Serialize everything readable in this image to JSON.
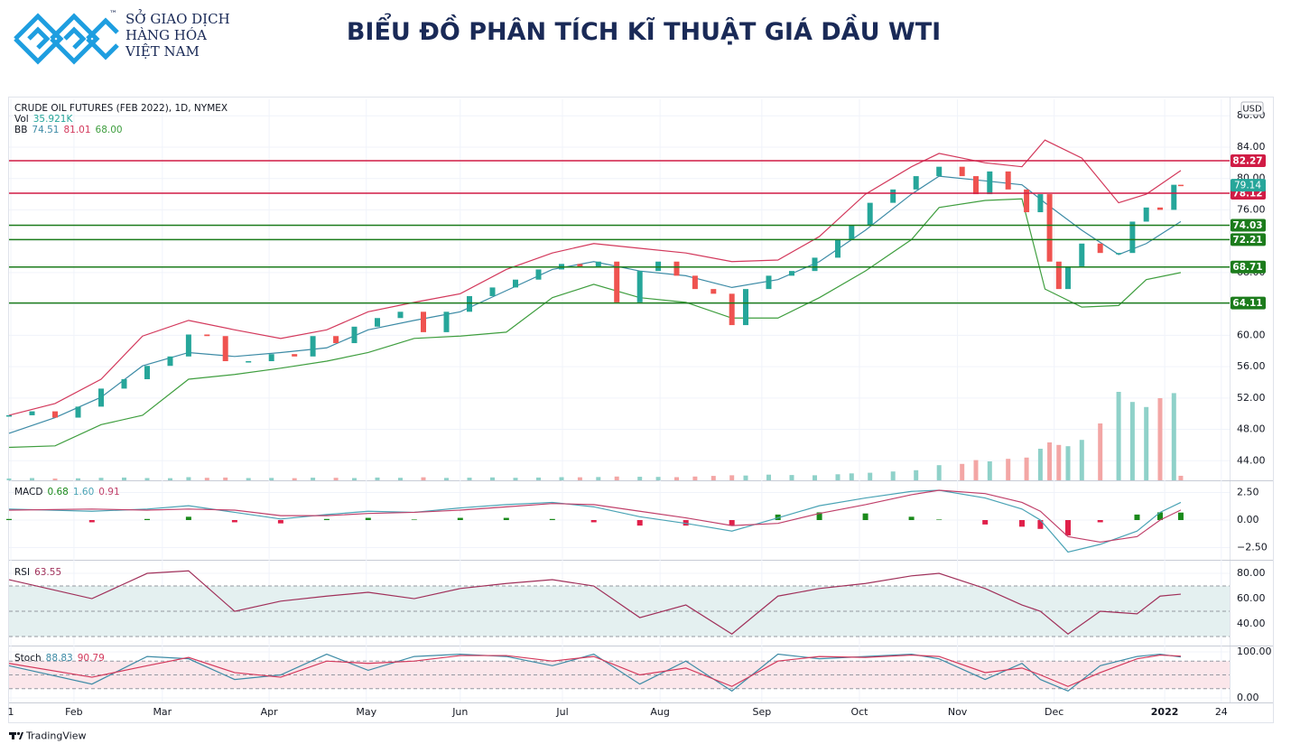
{
  "header": {
    "logo_lines": [
      "SỞ GIAO DỊCH",
      "HÀNG HÓA",
      "VIỆT NAM"
    ],
    "trademark": "™",
    "title": "BIỂU ĐỒ PHÂN TÍCH KĨ THUẬT GIÁ DẦU WTI"
  },
  "chart_data": [
    {
      "type": "candlestick",
      "title": "CRUDE OIL FUTURES (FEB 2022), 1D, NYMEX",
      "currency": "USD",
      "up_color": "#26a69a",
      "down_color": "#ef5350",
      "xlim": [
        0,
        265.1
      ],
      "xticks": [
        {
          "value": 0.4,
          "label": "1"
        },
        {
          "value": 14.1,
          "label": "Feb"
        },
        {
          "value": 33.3,
          "label": "Mar"
        },
        {
          "value": 56.5,
          "label": "Apr"
        },
        {
          "value": 77.6,
          "label": "May"
        },
        {
          "value": 98,
          "label": "Jun"
        },
        {
          "value": 120.2,
          "label": "Jul"
        },
        {
          "value": 141.4,
          "label": "Aug"
        },
        {
          "value": 163.5,
          "label": "Sep"
        },
        {
          "value": 184.7,
          "label": "Oct"
        },
        {
          "value": 206,
          "label": "Nov"
        },
        {
          "value": 227,
          "label": "Dec"
        },
        {
          "value": 251,
          "label": "2022"
        },
        {
          "value": 263.3,
          "label": "24"
        }
      ],
      "ylim": [
        41.5,
        90.1
      ],
      "yticks": [
        {
          "value": 44,
          "label": "44.00"
        },
        {
          "value": 48,
          "label": "48.00"
        },
        {
          "value": 52,
          "label": "52.00"
        },
        {
          "value": 56,
          "label": "56.00"
        },
        {
          "value": 60,
          "label": "60.00"
        },
        {
          "value": 64,
          "label": "64.00"
        },
        {
          "value": 68,
          "label": "68.00"
        },
        {
          "value": 72,
          "label": "72.00"
        },
        {
          "value": 76,
          "label": "76.00"
        },
        {
          "value": 80,
          "label": "80.00"
        },
        {
          "value": 84,
          "label": "84.00"
        },
        {
          "value": 88,
          "label": "88.00"
        }
      ],
      "x": [
        0,
        5,
        10,
        15,
        20,
        25,
        30,
        35,
        39,
        43,
        47,
        52,
        57,
        62,
        66,
        71,
        75,
        80,
        85,
        90,
        95,
        100,
        105,
        110,
        115,
        120,
        124,
        128,
        132,
        137,
        141,
        145,
        149,
        153,
        157,
        160,
        165,
        170,
        175,
        180,
        183,
        187,
        192,
        197,
        202,
        207,
        210,
        213,
        217,
        221,
        224,
        226,
        228,
        230,
        233,
        237,
        241,
        244,
        247,
        250,
        253,
        254.5
      ],
      "values": [
        49.8,
        50.3,
        49.5,
        50.9,
        53.2,
        54.4,
        56.1,
        57.3,
        60.1,
        59.9,
        56.7,
        56.7,
        57.6,
        57.3,
        59.9,
        59.0,
        61.1,
        62.2,
        63.0,
        60.4,
        63.0,
        65.0,
        66.1,
        67.1,
        68.4,
        69.1,
        68.7,
        69.4,
        64.2,
        68.2,
        69.4,
        67.6,
        65.9,
        65.3,
        61.3,
        65.9,
        67.6,
        68.2,
        69.9,
        72.2,
        74.0,
        76.9,
        78.6,
        80.3,
        81.5,
        80.3,
        78.0,
        80.9,
        78.6,
        75.7,
        78.0,
        69.4,
        65.9,
        68.8,
        71.7,
        70.5,
        70.5,
        74.5,
        76.3,
        76.0,
        79.2,
        79.1
      ],
      "volume": {
        "name": "Vol",
        "label": "35.921K",
        "up_color": "#8fd1c9",
        "down_color": "#f3a6a5",
        "values": [
          15,
          18,
          14,
          16,
          20,
          22,
          18,
          17,
          25,
          20,
          22,
          18,
          19,
          17,
          21,
          20,
          18,
          22,
          20,
          24,
          19,
          21,
          23,
          20,
          22,
          25,
          24,
          26,
          30,
          28,
          27,
          25,
          30,
          35,
          40,
          38,
          45,
          42,
          40,
          48,
          55,
          60,
          70,
          80,
          120,
          130,
          160,
          150,
          170,
          180,
          250,
          300,
          280,
          270,
          320,
          450,
          700,
          620,
          580,
          650,
          690,
          35.921
        ]
      },
      "bollinger": {
        "name": "BB",
        "labels": [
          "74.51",
          "81.01",
          "68.00"
        ],
        "middle_color": "#3d8ba6",
        "upper_color": "#d3395c",
        "lower_color": "#3f9e3f",
        "x": [
          0,
          10,
          20,
          29,
          39,
          49,
          59,
          69,
          78,
          88,
          98,
          108,
          118,
          127,
          137,
          147,
          157,
          167,
          176,
          186,
          196,
          202,
          212,
          220,
          225,
          233,
          241,
          247,
          254.5
        ],
        "upper": [
          49.8,
          51.3,
          54.4,
          59.9,
          61.9,
          60.7,
          59.6,
          60.7,
          63.0,
          64.2,
          65.3,
          68.4,
          70.5,
          71.7,
          71.1,
          70.5,
          69.4,
          69.6,
          72.6,
          78.0,
          81.5,
          83.2,
          82.0,
          81.5,
          84.9,
          82.6,
          76.9,
          78.0,
          81.01
        ],
        "middle": [
          47.5,
          49.5,
          52.1,
          56.1,
          57.8,
          57.3,
          57.8,
          58.4,
          60.7,
          61.9,
          63.0,
          65.7,
          68.4,
          69.4,
          68.2,
          67.6,
          66.1,
          67.1,
          69.4,
          73.4,
          78.0,
          80.3,
          79.7,
          79.2,
          76.9,
          73.4,
          70.3,
          71.7,
          74.51
        ],
        "lower": [
          45.7,
          45.9,
          48.6,
          49.8,
          54.4,
          55.0,
          55.8,
          56.7,
          57.8,
          59.6,
          59.9,
          60.4,
          64.8,
          66.5,
          64.8,
          64.2,
          62.2,
          62.2,
          64.8,
          68.2,
          72.2,
          76.3,
          77.2,
          77.4,
          65.9,
          63.6,
          63.8,
          67.1,
          68.0
        ]
      },
      "levels": [
        {
          "value": 82.27,
          "label": "82.27",
          "color": "#d01c45"
        },
        {
          "value": 78.12,
          "label": "78.12",
          "color": "#d01c45"
        },
        {
          "value": 74.03,
          "label": "74.03",
          "color": "#1c7c1c"
        },
        {
          "value": 72.21,
          "label": "72.21",
          "color": "#1c7c1c"
        },
        {
          "value": 68.71,
          "label": "68.71",
          "color": "#1c7c1c"
        },
        {
          "value": 64.11,
          "label": "64.11",
          "color": "#1c7c1c"
        }
      ],
      "last_price": {
        "value": 79.14,
        "label": "79.14",
        "color": "#26a69a"
      }
    },
    {
      "type": "macd",
      "name": "MACD",
      "labels": [
        "0.68",
        "1.60",
        "0.91"
      ],
      "ylim": [
        -3.6,
        3.52
      ],
      "yticks": [
        {
          "value": 2.5,
          "label": "2.50"
        },
        {
          "value": 0,
          "label": "0.00"
        },
        {
          "value": -2.5,
          "label": "−2.50"
        }
      ],
      "x": [
        0,
        18,
        30,
        39,
        49,
        59,
        69,
        78,
        88,
        98,
        108,
        118,
        127,
        137,
        147,
        157,
        167,
        176,
        186,
        196,
        202,
        212,
        220,
        224,
        230,
        237,
        245,
        250,
        254.5
      ],
      "macd": [
        1.0,
        0.8,
        1.0,
        1.3,
        0.7,
        0.1,
        0.5,
        0.8,
        0.7,
        1.1,
        1.4,
        1.6,
        1.2,
        0.3,
        -0.3,
        -1.0,
        0.2,
        1.3,
        2.0,
        2.6,
        2.7,
        2.0,
        1.0,
        0.0,
        -2.9,
        -2.2,
        -1.0,
        0.7,
        1.6
      ],
      "signal": [
        0.9,
        1.0,
        0.9,
        1.0,
        0.9,
        0.4,
        0.4,
        0.6,
        0.7,
        0.9,
        1.2,
        1.5,
        1.4,
        0.8,
        0.2,
        -0.5,
        -0.3,
        0.6,
        1.4,
        2.3,
        2.7,
        2.4,
        1.6,
        0.8,
        -1.5,
        -2.0,
        -1.5,
        0.0,
        0.91
      ],
      "histogram": [
        0.1,
        -0.2,
        0.1,
        0.3,
        -0.2,
        -0.3,
        0.1,
        0.2,
        0.05,
        0.2,
        0.2,
        0.1,
        -0.2,
        -0.5,
        -0.5,
        -0.5,
        0.5,
        0.7,
        0.6,
        0.3,
        0.05,
        -0.4,
        -0.6,
        -0.8,
        -1.4,
        -0.2,
        0.5,
        0.7,
        0.68
      ],
      "macd_color": "#4aa3b5",
      "signal_color": "#c0406a",
      "up_color": "#1b8a1b",
      "down_color": "#e0204a"
    },
    {
      "type": "rsi",
      "name": "RSI",
      "label": "63.55",
      "ylim": [
        22.9,
        89.3
      ],
      "yticks": [
        {
          "value": 40,
          "label": "40.00"
        },
        {
          "value": 60,
          "label": "60.00"
        },
        {
          "value": 80,
          "label": "80.00"
        }
      ],
      "band": [
        30,
        50,
        70
      ],
      "band_color": "#e4f0f0",
      "color": "#a0305a",
      "x": [
        0,
        18,
        30,
        39,
        49,
        59,
        69,
        78,
        88,
        98,
        108,
        118,
        127,
        137,
        147,
        157,
        167,
        176,
        186,
        196,
        202,
        212,
        220,
        224,
        230,
        237,
        245,
        250,
        254.5
      ],
      "values": [
        75,
        60,
        80,
        82,
        50,
        58,
        62,
        65,
        60,
        68,
        72,
        75,
        70,
        45,
        55,
        32,
        62,
        68,
        72,
        78,
        80,
        68,
        55,
        50,
        32,
        50,
        48,
        62,
        63.55
      ]
    },
    {
      "type": "stochastic",
      "name": "Stoch",
      "labels": [
        "88.83",
        "90.79"
      ],
      "ylim": [
        -9.8,
        109.8
      ],
      "yticks": [
        {
          "value": 0,
          "label": "0.00"
        },
        {
          "value": 100,
          "label": "100.00"
        }
      ],
      "band": [
        20,
        50,
        80
      ],
      "band_color": "#fbe6ea",
      "k_color": "#3d8ba6",
      "d_color": "#d3395c",
      "x": [
        0,
        18,
        30,
        39,
        49,
        59,
        69,
        78,
        88,
        98,
        108,
        118,
        127,
        137,
        147,
        157,
        167,
        176,
        186,
        196,
        202,
        212,
        220,
        224,
        230,
        237,
        245,
        250,
        254.5
      ],
      "k": [
        70,
        30,
        90,
        85,
        40,
        50,
        95,
        60,
        90,
        95,
        90,
        70,
        95,
        30,
        80,
        15,
        95,
        85,
        90,
        95,
        85,
        40,
        75,
        40,
        15,
        70,
        90,
        95,
        88.83
      ],
      "d": [
        75,
        45,
        70,
        88,
        55,
        45,
        80,
        75,
        80,
        92,
        92,
        80,
        90,
        50,
        65,
        25,
        80,
        90,
        88,
        93,
        90,
        55,
        65,
        50,
        25,
        55,
        85,
        93,
        90.79
      ]
    }
  ],
  "footer": {
    "brand": "TradingView"
  }
}
